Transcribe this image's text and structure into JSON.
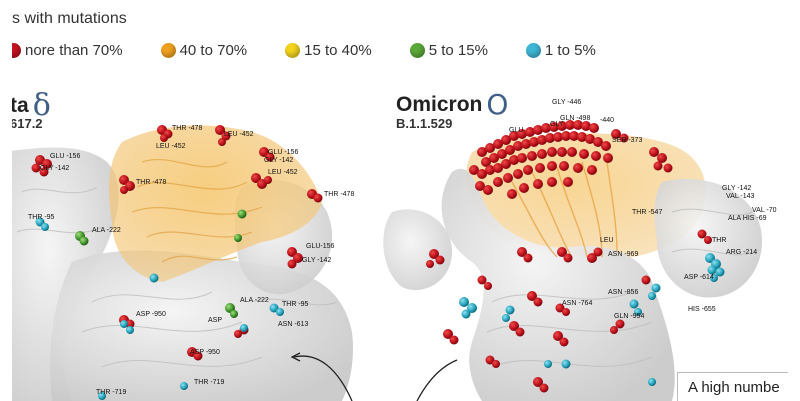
{
  "legend": {
    "title": "s with mutations",
    "items": [
      {
        "label": "nore than 70%",
        "color": "#c4141e"
      },
      {
        "label": "40 to 70%",
        "color": "#f0a020"
      },
      {
        "label": "15 to 40%",
        "color": "#f3d21c"
      },
      {
        "label": "5 to 15%",
        "color": "#5aa83a"
      },
      {
        "label": "1 to 5%",
        "color": "#3fb6d6"
      }
    ]
  },
  "variants": {
    "delta": {
      "name": "ta",
      "code": "617.2",
      "symbol": "δ"
    },
    "omicron": {
      "name": "Omicron",
      "code": "B.1.1.529",
      "symbol": "O"
    }
  },
  "delta_labels": [
    "GLU -156",
    "GLY -142",
    "THR -478",
    "LEU -452",
    "LEU -452",
    "THR -478",
    "GLU -156",
    "GLY -142",
    "LEU -452",
    "THR -478",
    "THR -95",
    "ALA -222",
    "GLU-156",
    "GLY -142",
    "ALA -222",
    "THR -95",
    "ASN -613",
    "ASP -950",
    "ASP",
    "ASP -950",
    "THR -719",
    "THR -719"
  ],
  "omicron_labels": [
    "GLY -446",
    "GLN -498",
    "-440",
    "GLU",
    "GLY",
    "SER -373",
    "THR -547",
    "GLY -142",
    "VAL -143",
    "ALA HIS -69",
    "VAL -70",
    "THR",
    "LEU",
    "ASN -969",
    "ARG -214",
    "ASP -614",
    "ASN -856",
    "ASN -764",
    "GLN -954",
    "HIS -655"
  ],
  "note": "A high numbe"
}
